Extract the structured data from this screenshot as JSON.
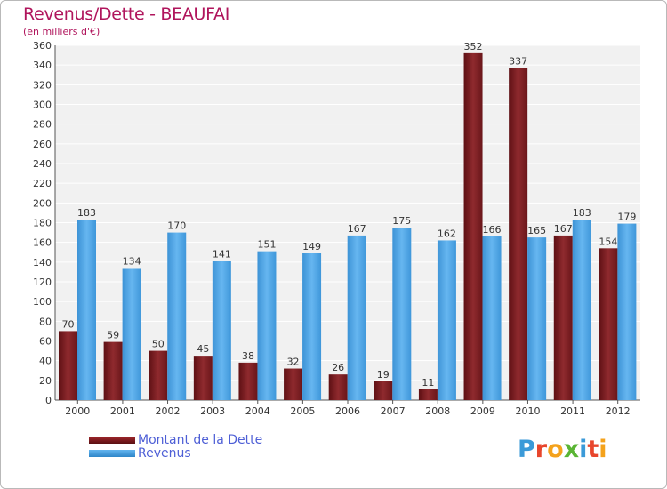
{
  "title": "Revenus/Dette - BEAUFAI",
  "subtitle": "(en milliers d'€)",
  "legend": {
    "dette_label": "Montant de la Dette",
    "revenus_label": "Revenus"
  },
  "logo": {
    "letters": [
      "P",
      "r",
      "o",
      "x",
      "i",
      "t",
      "i"
    ],
    "colors": [
      "#3b9ad8",
      "#e8462d",
      "#f4a21c",
      "#5ab534",
      "#3b9ad8",
      "#e8462d",
      "#f4a21c"
    ]
  },
  "colors": {
    "dette": "#7a1f24",
    "revenus": "#4aa3e6",
    "title": "#b0155c",
    "legend_text": "#4e5fd6"
  },
  "chart_data": {
    "type": "bar",
    "categories": [
      "2000",
      "2001",
      "2002",
      "2003",
      "2004",
      "2005",
      "2006",
      "2007",
      "2008",
      "2009",
      "2010",
      "2011",
      "2012"
    ],
    "series": [
      {
        "name": "Montant de la Dette",
        "values": [
          70,
          59,
          50,
          45,
          38,
          32,
          26,
          19,
          11,
          352,
          337,
          167,
          154
        ]
      },
      {
        "name": "Revenus",
        "values": [
          183,
          134,
          170,
          141,
          151,
          149,
          167,
          175,
          162,
          166,
          165,
          183,
          179
        ]
      }
    ],
    "ylim": [
      0,
      360
    ],
    "ytick_step": 20,
    "grid": true
  }
}
